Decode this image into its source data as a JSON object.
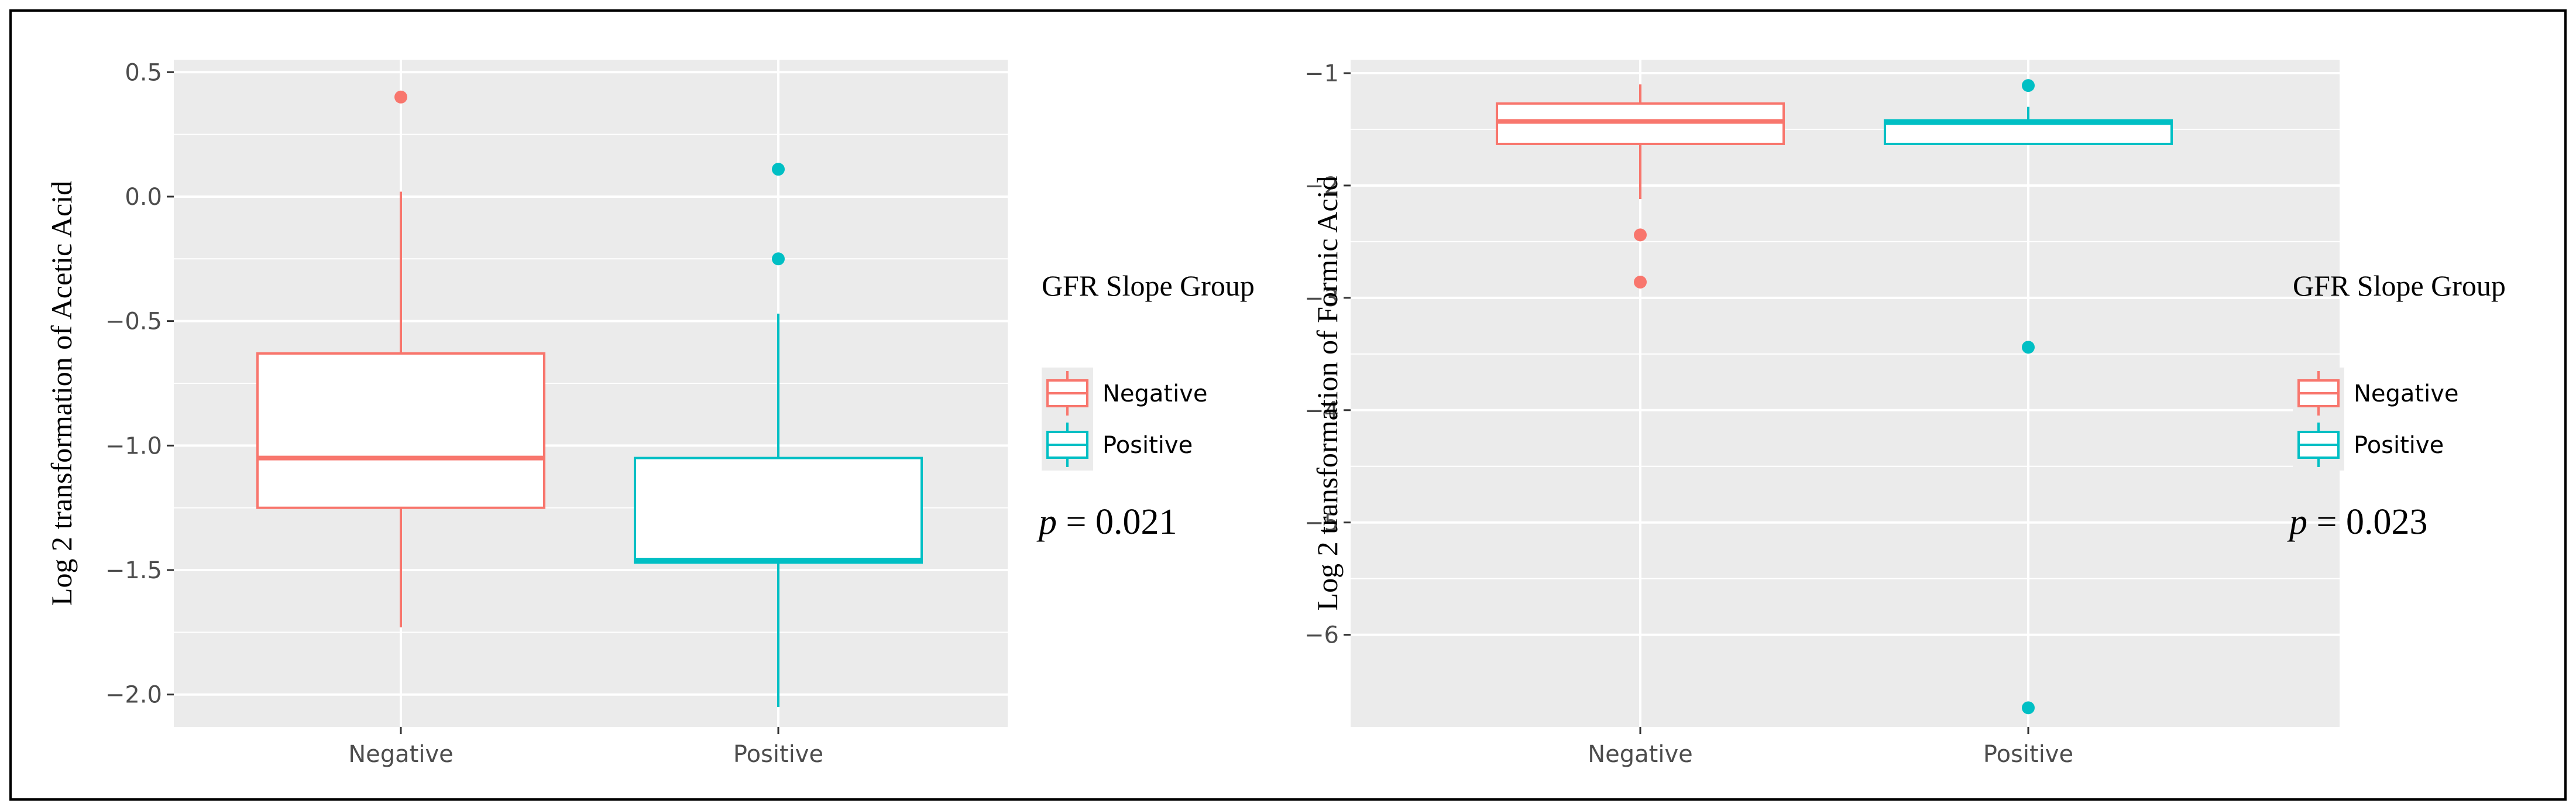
{
  "colors": {
    "Negative": "#F8766D",
    "Positive": "#00BFC4",
    "panel_bg": "#EBEBEB",
    "grid": "#FFFFFF",
    "frame": "#000000"
  },
  "chart_data": [
    {
      "type": "boxplot",
      "title": "",
      "xlabel": "",
      "ylabel": "Log 2 transformation of Acetic Acid",
      "categories": [
        "Negative",
        "Positive"
      ],
      "ylim": [
        -2.13,
        0.55
      ],
      "yticks": [
        0.5,
        0.0,
        -0.5,
        -1.0,
        -1.5,
        -2.0
      ],
      "ytick_labels": [
        "0.5",
        "0.0",
        "−0.5",
        "−1.0",
        "−1.5",
        "−2.0"
      ],
      "grid": true,
      "series": [
        {
          "category": "Negative",
          "whisker_low": -1.73,
          "q1": -1.25,
          "median": -1.05,
          "q3": -0.63,
          "whisker_high": 0.02,
          "outliers": [
            0.4
          ]
        },
        {
          "category": "Positive",
          "whisker_low": -2.05,
          "q1": -1.47,
          "median": -1.46,
          "q3": -1.05,
          "whisker_high": -0.47,
          "outliers": [
            0.11,
            -0.25
          ]
        }
      ],
      "legend": {
        "title": "GFR Slope Group",
        "entries": [
          "Negative",
          "Positive"
        ],
        "position": "right"
      },
      "annotation": {
        "symbol": "p",
        "text": " = 0.021"
      }
    },
    {
      "type": "boxplot",
      "title": "",
      "xlabel": "",
      "ylabel": "Log 2 transformation of Formic Acid",
      "categories": [
        "Negative",
        "Positive"
      ],
      "ylim": [
        -6.82,
        -0.88
      ],
      "yticks": [
        -1,
        -2,
        -3,
        -4,
        -5,
        -6
      ],
      "ytick_labels": [
        "−1",
        "−2",
        "−3",
        "−4",
        "−5",
        "−6"
      ],
      "grid": true,
      "series": [
        {
          "category": "Negative",
          "whisker_low": -2.12,
          "q1": -1.63,
          "median": -1.43,
          "q3": -1.27,
          "whisker_high": -1.1,
          "outliers": [
            -2.44,
            -2.86
          ]
        },
        {
          "category": "Positive",
          "whisker_low": -1.64,
          "q1": -1.63,
          "median": -1.44,
          "q3": -1.42,
          "whisker_high": -1.3,
          "outliers": [
            -1.11,
            -3.44,
            -6.65
          ]
        }
      ],
      "legend": {
        "title": "GFR Slope Group",
        "entries": [
          "Negative",
          "Positive"
        ],
        "position": "right"
      },
      "annotation": {
        "symbol": "p",
        "text": " = 0.023"
      }
    }
  ]
}
